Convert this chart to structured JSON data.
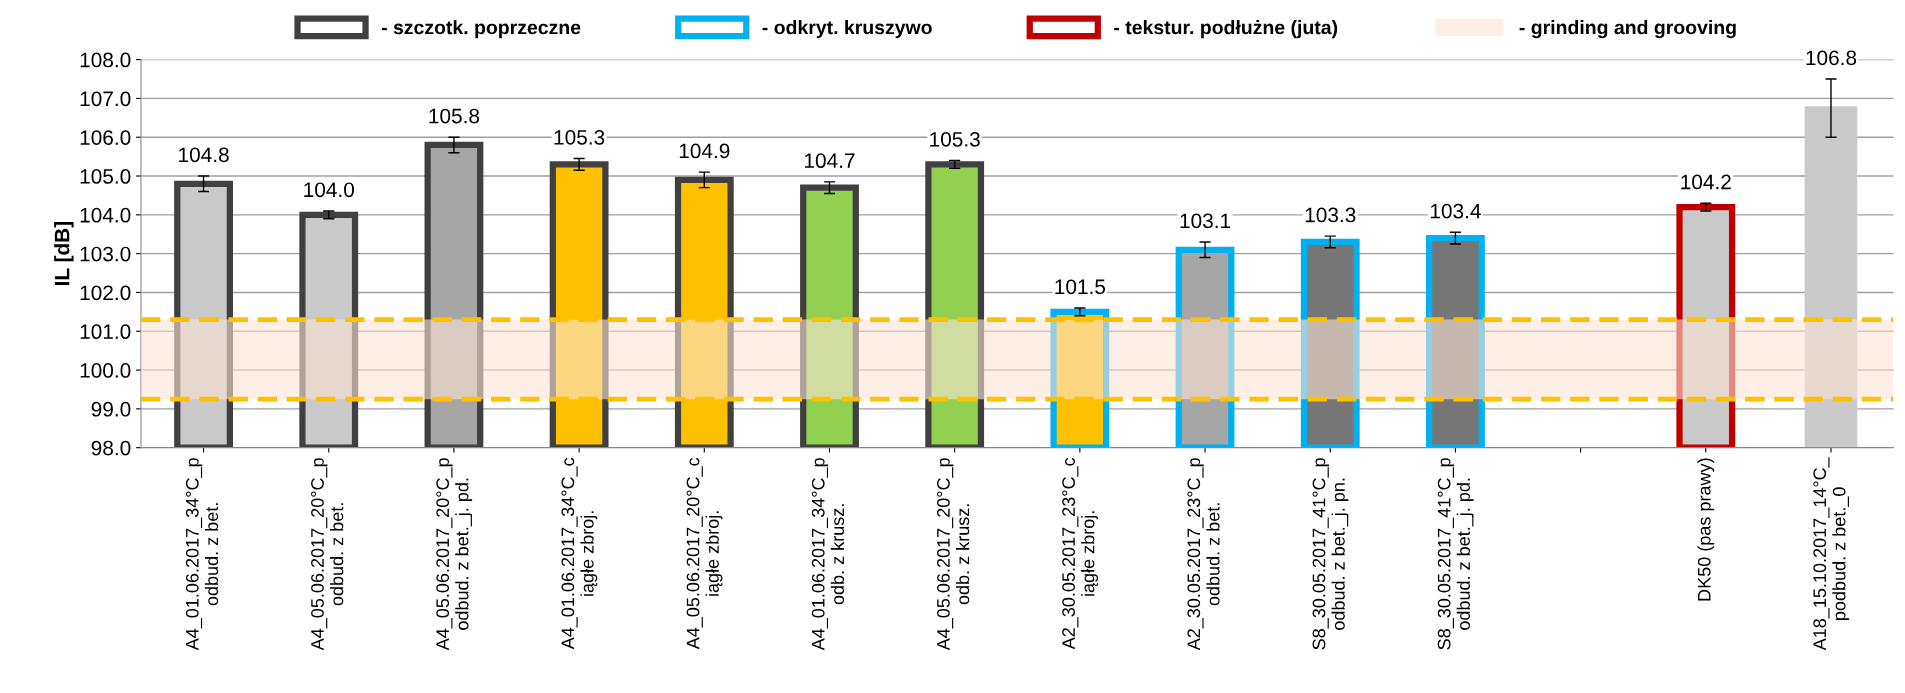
{
  "chart_data": {
    "type": "bar",
    "ylabel": "IL [dB]",
    "categories": [
      "A4_01.06.2017_34°C_p\nodbud. z bet.",
      "A4_05.06.2017_20°C_p\nodbud. z bet.",
      "A4_05.06.2017_20°C_p\nodbud. z bet._j. pd.",
      "A4_01.06.2017_34°C_c\niągłe zbroj.",
      "A4_05.06.2017_20°C_c\niągłe zbroj.",
      "A4_01.06.2017_34°C_p\nodb. z krusz.",
      "A4_05.06.2017_20°C_p\nodb. z krusz.",
      "A2_30.05.2017_23°C_c\niągłe zbroj.",
      "A2_30.05.2017_23°C_p\nodbud. z bet.",
      "S8_30.05.2017_41°C_p\nodbud. z bet._j. pn.",
      "S8_30.05.2017_41°C_p\nodbud. z bet._j. pd.",
      null,
      "DK50 (pas prawy)",
      "A18_15.10.2017_14°C_\npodbud. z bet._0"
    ],
    "series": [
      {
        "name": "- szczotk. poprzeczne",
        "color": "#404040",
        "colors": [
          "#c9c9c9",
          "#c9c9c9",
          "#a6a6a6",
          "#ffc000",
          "#ffc000",
          "#92d050",
          "#92d050",
          null,
          null,
          null,
          null,
          null,
          null,
          null
        ],
        "values": [
          104.8,
          104.0,
          105.8,
          105.3,
          104.9,
          104.7,
          105.3,
          null,
          null,
          null,
          null,
          null,
          null,
          null
        ],
        "errors": [
          0.2,
          0.1,
          0.2,
          0.15,
          0.2,
          0.15,
          0.1,
          null,
          null,
          null,
          null,
          null,
          null,
          null
        ],
        "value_labels": [
          "104.8",
          "104.0",
          "105.8",
          "105.3",
          "104.9",
          "104.7",
          "105.3",
          null,
          null,
          null,
          null,
          null,
          null,
          null
        ]
      },
      {
        "name": "- odkryt. kruszywo",
        "color": "#00b0f0",
        "colors": [
          null,
          null,
          null,
          null,
          null,
          null,
          null,
          "#ffc000",
          "#a6a6a6",
          "#767676",
          "#767676",
          null,
          null,
          null
        ],
        "values": [
          null,
          null,
          null,
          null,
          null,
          null,
          null,
          101.5,
          103.1,
          103.3,
          103.4,
          null,
          null,
          null
        ],
        "errors": [
          null,
          null,
          null,
          null,
          null,
          null,
          null,
          0.1,
          0.2,
          0.15,
          0.15,
          null,
          null,
          null
        ],
        "value_labels": [
          null,
          null,
          null,
          null,
          null,
          null,
          null,
          "101.5",
          "103.1",
          "103.3",
          "103.4",
          null,
          null,
          null
        ]
      },
      {
        "name": "- tekstur. podłużne (juta)",
        "color": "#c00000",
        "colors": [
          null,
          null,
          null,
          null,
          null,
          null,
          null,
          null,
          null,
          null,
          null,
          null,
          "#c9c9c9",
          null
        ],
        "values": [
          null,
          null,
          null,
          null,
          null,
          null,
          null,
          null,
          null,
          null,
          null,
          null,
          104.2,
          null
        ],
        "errors": [
          null,
          null,
          null,
          null,
          null,
          null,
          null,
          null,
          null,
          null,
          null,
          null,
          0.1,
          null
        ],
        "value_labels": [
          null,
          null,
          null,
          null,
          null,
          null,
          null,
          null,
          null,
          null,
          null,
          null,
          "104.2",
          null
        ]
      },
      {
        "color": "#c9c9c9",
        "values": [
          null,
          null,
          null,
          null,
          null,
          null,
          null,
          null,
          null,
          null,
          null,
          null,
          null,
          106.8
        ],
        "errors": [
          null,
          null,
          null,
          null,
          null,
          null,
          null,
          null,
          null,
          null,
          null,
          null,
          null,
          [
            106.0,
            107.5
          ]
        ],
        "value_labels": [
          null,
          null,
          null,
          null,
          null,
          null,
          null,
          null,
          null,
          null,
          null,
          null,
          null,
          "106.8"
        ]
      }
    ],
    "bands": [
      {
        "axis": "y",
        "from": 99.25,
        "to": 101.3,
        "label": "- grinding and grooving",
        "color": "#fbe5d6"
      }
    ],
    "ref_lines": [
      {
        "axis": "y",
        "value": 99.25,
        "color": "#ffc000",
        "line_style": "dashed"
      },
      {
        "axis": "y",
        "value": 101.3,
        "color": "#ffc000",
        "line_style": "dashed"
      }
    ],
    "ylim": [
      98.0,
      108.0
    ],
    "yticks": [
      {
        "value": 98.0,
        "label": "98.0"
      },
      {
        "value": 99.0,
        "label": "99.0"
      },
      {
        "value": 100.0,
        "label": "100.0"
      },
      {
        "value": 101.0,
        "label": "101.0"
      },
      {
        "value": 102.0,
        "label": "102.0"
      },
      {
        "value": 103.0,
        "label": "103.0"
      },
      {
        "value": 104.0,
        "label": "104.0"
      },
      {
        "value": 105.0,
        "label": "105.0"
      },
      {
        "value": 106.0,
        "label": "106.0"
      },
      {
        "value": 107.0,
        "label": "107.0"
      },
      {
        "value": 108.0,
        "label": "108.0"
      }
    ],
    "grid": "y",
    "legend": "top"
  }
}
